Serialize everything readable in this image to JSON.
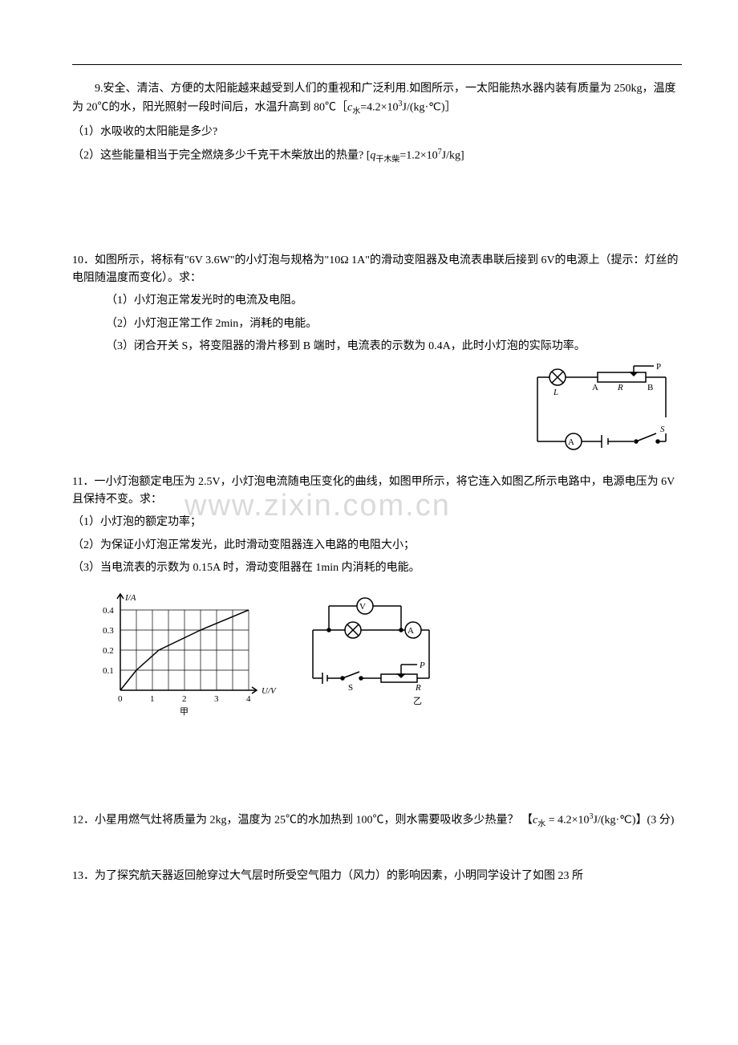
{
  "watermark_text": "www.zixin.com.cn",
  "q9": {
    "intro": "9.安全、清洁、方便的太阳能越来越受到人们的重视和广泛利用.如图所示，一太阳能热水器内装有质量为 250kg，温度为 20℃的水，阳光照射一段时间后，水温升高到 80℃［",
    "c_label": "c",
    "c_sub": "水",
    "c_rest": "=4.2×10",
    "c_sup": "3",
    "c_unit": "J/(kg·℃)］",
    "p1": "（1）水吸收的太阳能是多少?",
    "p2_pre": "（2）这些能量相当于完全燃烧多少千克干木柴放出的热量? [",
    "q_label": "q",
    "q_sub": "干木柴",
    "q_rest": "=1.2×10",
    "q_sup": "7",
    "q_unit": "J/kg]"
  },
  "q10": {
    "intro": "10．如图所示，将标有\"6V   3.6W\"的小灯泡与规格为\"10Ω   1A\"的滑动变阻器及电流表串联后接到 6V的电源上（提示：灯丝的电阻随温度而变化）。求：",
    "p1": "（1）小灯泡正常发光时的电流及电阻。",
    "p2": "（2）小灯泡正常工作 2min，消耗的电能。",
    "p3": "（3）闭合开关 S，将变阻器的滑片移到 B 端时，电流表的示数为 0.4A，此时小灯泡的实际功率。"
  },
  "q11": {
    "intro": "11．一小灯泡额定电压为 2.5V，小灯泡电流随电压变化的曲线，如图甲所示，将它连入如图乙所示电路中，电源电压为 6V 且保持不变。求：",
    "p1": "（1）小灯泡的额定功率；",
    "p2": "（2）为保证小灯泡正常发光，此时滑动变阻器连入电路的电阻大小；",
    "p3": "（3）当电流表的示数为 0.15A 时，滑动变阻器在 1min 内消耗的电能。"
  },
  "q12": {
    "text_pre": "12．小星用燃气灶将质量为 2kg，温度为 25℃的水加热到 100℃，则水需要吸收多少热量？  【",
    "c_label": "c",
    "c_sub": "水",
    "c_mid": " = 4.2×10",
    "c_sup": "3",
    "c_end": "J/(kg·℃)】(3 分)"
  },
  "q13": {
    "text": "13．为了探究航天器返回舱穿过大气层时所受空气阻力（风力）的影响因素，小明同学设计了如图 23 所"
  },
  "circuit10": {
    "labels": {
      "L": "L",
      "A_left": "A",
      "A_meter": "A",
      "R": "R",
      "B": "B",
      "P": "P",
      "S": "S"
    },
    "colors": {
      "stroke": "#000000",
      "bg": "#ffffff"
    }
  },
  "chart11": {
    "y_label": "I/A",
    "x_label": "U/V",
    "caption": "甲",
    "y_ticks": [
      "0.1",
      "0.2",
      "0.3",
      "0.4"
    ],
    "x_ticks": [
      "0",
      "1",
      "2",
      "3",
      "4"
    ],
    "xlim": [
      0,
      4
    ],
    "ylim": [
      0,
      0.4
    ],
    "grid_cols": 8,
    "grid_rows": 4,
    "curve_points": [
      [
        0,
        0
      ],
      [
        0.5,
        0.1
      ],
      [
        1.2,
        0.2
      ],
      [
        2.5,
        0.3
      ],
      [
        4,
        0.4
      ]
    ],
    "colors": {
      "axis": "#000000",
      "grid": "#000000",
      "curve": "#000000",
      "bg": "#ffffff"
    },
    "line_width": 1.5,
    "grid_width": 0.7
  },
  "circuit11": {
    "labels": {
      "V": "V",
      "A": "A",
      "S": "S",
      "R": "R",
      "P": "P"
    },
    "caption": "乙",
    "colors": {
      "stroke": "#000000"
    }
  }
}
